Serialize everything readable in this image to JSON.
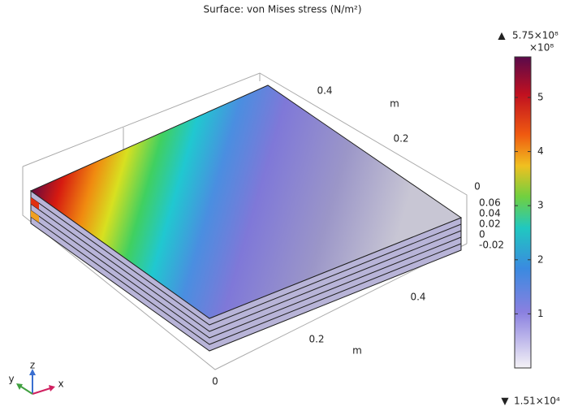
{
  "chart_data": {
    "type": "surface",
    "title": "Surface: von Mises stress (N/m²)",
    "colorbar": {
      "max_label": "5.75×10⁸",
      "multiplier": "×10⁸",
      "min_label": "1.51×10⁴",
      "lim": [
        0.000151,
        5.75
      ],
      "ticks": [
        1,
        2,
        3,
        4,
        5
      ]
    },
    "x": {
      "label": "m",
      "ticks": [
        0,
        0.2,
        0.4
      ]
    },
    "y": {
      "label": "m",
      "ticks": [
        0,
        0.2,
        0.4
      ]
    },
    "z": {
      "ticks": [
        -0.02,
        0,
        0.02,
        0.04,
        0.06
      ]
    },
    "triad": {
      "x": "x",
      "y": "y",
      "z": "z"
    }
  }
}
